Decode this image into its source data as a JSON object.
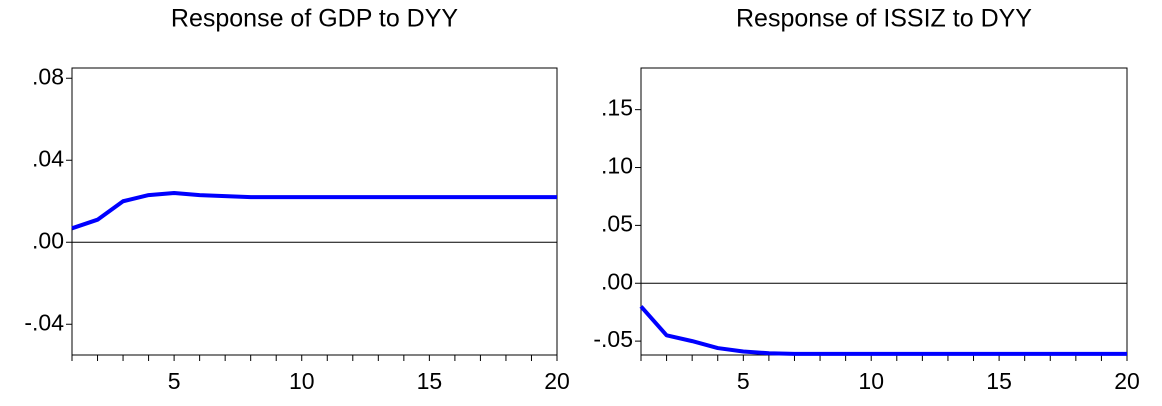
{
  "chart_data": [
    {
      "type": "line",
      "title": "Response of GDP to DYY",
      "x": [
        1,
        2,
        3,
        4,
        5,
        6,
        7,
        8,
        9,
        10,
        11,
        12,
        13,
        14,
        15,
        16,
        17,
        18,
        19,
        20
      ],
      "series": [
        {
          "name": null,
          "color": "#0000ff",
          "values": [
            0.0068,
            0.011,
            0.02,
            0.023,
            0.024,
            0.023,
            0.0225,
            0.022,
            0.022,
            0.022,
            0.022,
            0.022,
            0.022,
            0.022,
            0.022,
            0.022,
            0.022,
            0.022,
            0.022,
            0.022
          ]
        }
      ],
      "xlim": [
        1,
        20
      ],
      "xticks": [
        5,
        10,
        15,
        20
      ],
      "ylim": [
        -0.055,
        0.085
      ],
      "yticks": [
        {
          "value": -0.04,
          "label": "-.04"
        },
        {
          "value": 0,
          "label": ".00"
        },
        {
          "value": 0.04,
          "label": ".04"
        },
        {
          "value": 0.08,
          "label": ".08"
        }
      ],
      "zero_line": true
    },
    {
      "type": "line",
      "title": "Response of ISSIZ to DYY",
      "x": [
        1,
        2,
        3,
        4,
        5,
        6,
        7,
        8,
        9,
        10,
        11,
        12,
        13,
        14,
        15,
        16,
        17,
        18,
        19,
        20
      ],
      "series": [
        {
          "name": null,
          "color": "#0000ff",
          "values": [
            -0.02,
            -0.045,
            -0.05,
            -0.056,
            -0.059,
            -0.0605,
            -0.061,
            -0.061,
            -0.061,
            -0.061,
            -0.061,
            -0.061,
            -0.061,
            -0.061,
            -0.061,
            -0.061,
            -0.061,
            -0.061,
            -0.061,
            -0.061
          ]
        }
      ],
      "xlim": [
        1,
        20
      ],
      "xticks": [
        5,
        10,
        15,
        20
      ],
      "ylim": [
        -0.062,
        0.186
      ],
      "yticks": [
        {
          "value": -0.05,
          "label": "-.05"
        },
        {
          "value": 0,
          "label": ".00"
        },
        {
          "value": 0.05,
          "label": ".05"
        },
        {
          "value": 0.1,
          "label": ".10"
        },
        {
          "value": 0.15,
          "label": ".15"
        }
      ],
      "zero_line": true
    }
  ]
}
